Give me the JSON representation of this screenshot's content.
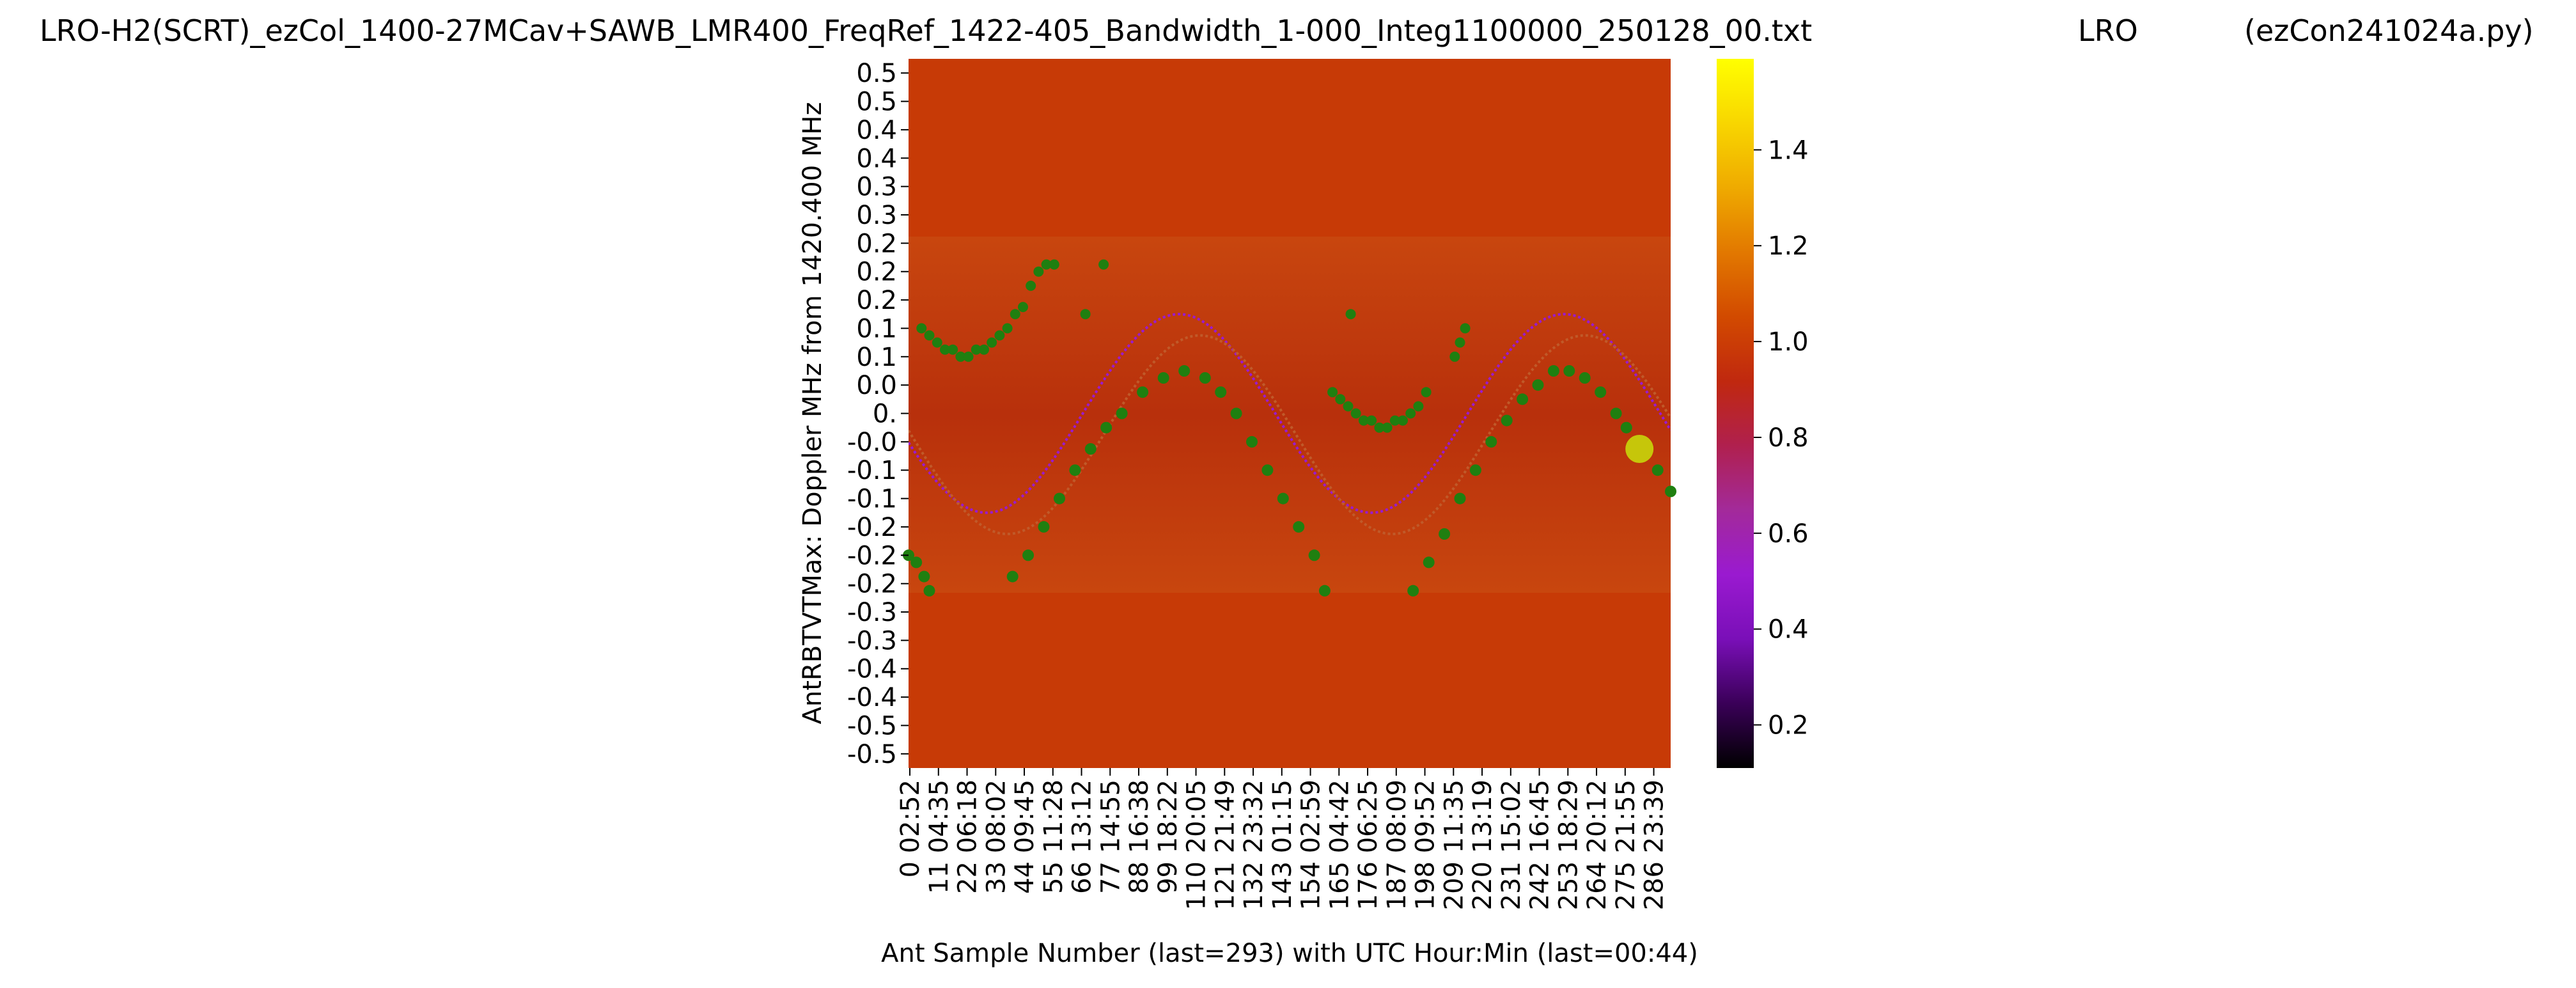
{
  "chart_data": {
    "type": "heatmap",
    "title_left": "LRO-H2(SCRT)_ezCol_1400-27MCav+SAWB_LMR400_FreqRef_1422-405_Bandwidth_1-000_Integ1100000_250128_00.txt",
    "title_mid": "LRO",
    "title_right": "(ezCon241024a.py)",
    "xlabel": "Ant Sample Number (last=293) with UTC Hour:Min (last=00:44)",
    "ylabel": "AntRBTVTMax:  Doppler MHz from 1420.400 MHz",
    "x_ticks": [
      {
        "sample": 0,
        "label": "0  02:52"
      },
      {
        "sample": 11,
        "label": "11  04:35"
      },
      {
        "sample": 22,
        "label": "22  06:18"
      },
      {
        "sample": 33,
        "label": "33  08:02"
      },
      {
        "sample": 44,
        "label": "44  09:45"
      },
      {
        "sample": 55,
        "label": "55  11:28"
      },
      {
        "sample": 66,
        "label": "66  13:12"
      },
      {
        "sample": 77,
        "label": "77  14:55"
      },
      {
        "sample": 88,
        "label": "88  16:38"
      },
      {
        "sample": 99,
        "label": "99  18:22"
      },
      {
        "sample": 110,
        "label": "110  20:05"
      },
      {
        "sample": 121,
        "label": "121  21:49"
      },
      {
        "sample": 132,
        "label": "132  23:32"
      },
      {
        "sample": 143,
        "label": "143  01:15"
      },
      {
        "sample": 154,
        "label": "154  02:59"
      },
      {
        "sample": 165,
        "label": "165  04:42"
      },
      {
        "sample": 176,
        "label": "176  06:25"
      },
      {
        "sample": 187,
        "label": "187  08:09"
      },
      {
        "sample": 198,
        "label": "198  09:52"
      },
      {
        "sample": 209,
        "label": "209  11:35"
      },
      {
        "sample": 220,
        "label": "220  13:19"
      },
      {
        "sample": 231,
        "label": "231  15:02"
      },
      {
        "sample": 242,
        "label": "242  16:45"
      },
      {
        "sample": 253,
        "label": "253  18:29"
      },
      {
        "sample": 264,
        "label": "264  20:12"
      },
      {
        "sample": 275,
        "label": "275  21:55"
      },
      {
        "sample": 286,
        "label": "286  23:39"
      }
    ],
    "x_range": [
      0,
      293
    ],
    "y_tick_labels": [
      "0.5",
      "0.5",
      "0.4",
      "0.4",
      "0.3",
      "0.3",
      "0.2",
      "0.2",
      "0.2",
      "0.1",
      "0.1",
      "0.0",
      "0.",
      "-0.0",
      "-0.1",
      "-0.1",
      "-0.2",
      "-0.2",
      "-0.2",
      "-0.3",
      "-0.3",
      "-0.4",
      "-0.4",
      "-0.5",
      "-0.5"
    ],
    "y_range": [
      -0.5,
      0.5
    ],
    "data_band_y_range": [
      -0.25,
      0.25
    ],
    "colorbar": {
      "ticks": [
        0.2,
        0.4,
        0.6,
        0.8,
        1.0,
        1.2,
        1.4
      ],
      "range": [
        0.11,
        1.59
      ],
      "colormap": "gnuplot",
      "stops": [
        "#000000",
        "#3a0058",
        "#7a0fb8",
        "#9a1ad0",
        "#a32a9a",
        "#b0204e",
        "#c0280f",
        "#d24a00",
        "#e27800",
        "#efaa00",
        "#f8d600",
        "#ffff00"
      ]
    },
    "fill_color": "#c73a06",
    "band_base_color": "#c0360c",
    "series": [
      {
        "type": "ridge_curve_maxima",
        "color": "#1f7f10",
        "points": [
          [
            0,
            -0.2
          ],
          [
            3,
            -0.21
          ],
          [
            6,
            -0.23
          ],
          [
            8,
            -0.25
          ],
          [
            40,
            -0.23
          ],
          [
            46,
            -0.2
          ],
          [
            52,
            -0.16
          ],
          [
            58,
            -0.12
          ],
          [
            64,
            -0.08
          ],
          [
            70,
            -0.05
          ],
          [
            76,
            -0.02
          ],
          [
            82,
            0.0
          ],
          [
            90,
            0.03
          ],
          [
            98,
            0.05
          ],
          [
            106,
            0.06
          ],
          [
            114,
            0.05
          ],
          [
            120,
            0.03
          ],
          [
            126,
            0.0
          ],
          [
            132,
            -0.04
          ],
          [
            138,
            -0.08
          ],
          [
            144,
            -0.12
          ],
          [
            150,
            -0.16
          ],
          [
            156,
            -0.2
          ],
          [
            160,
            -0.25
          ],
          [
            194,
            -0.25
          ],
          [
            200,
            -0.21
          ],
          [
            206,
            -0.17
          ],
          [
            212,
            -0.12
          ],
          [
            218,
            -0.08
          ],
          [
            224,
            -0.04
          ],
          [
            230,
            -0.01
          ],
          [
            236,
            0.02
          ],
          [
            242,
            0.04
          ],
          [
            248,
            0.06
          ],
          [
            254,
            0.06
          ],
          [
            260,
            0.05
          ],
          [
            266,
            0.03
          ],
          [
            272,
            0.0
          ],
          [
            276,
            -0.02
          ],
          [
            282,
            -0.05
          ],
          [
            288,
            -0.08
          ],
          [
            293,
            -0.11
          ]
        ]
      },
      {
        "type": "upper_arc_points",
        "color": "#1f7f10",
        "points": [
          [
            5,
            0.12
          ],
          [
            8,
            0.11
          ],
          [
            11,
            0.1
          ],
          [
            14,
            0.09
          ],
          [
            17,
            0.09
          ],
          [
            20,
            0.08
          ],
          [
            23,
            0.08
          ],
          [
            26,
            0.09
          ],
          [
            29,
            0.09
          ],
          [
            32,
            0.1
          ],
          [
            35,
            0.11
          ],
          [
            38,
            0.12
          ],
          [
            41,
            0.14
          ],
          [
            44,
            0.15
          ],
          [
            47,
            0.18
          ],
          [
            50,
            0.2
          ],
          [
            53,
            0.21
          ],
          [
            56,
            0.21
          ],
          [
            68,
            0.14
          ],
          [
            75,
            0.21
          ],
          [
            163,
            0.03
          ],
          [
            166,
            0.02
          ],
          [
            169,
            0.01
          ],
          [
            172,
            0.0
          ],
          [
            175,
            -0.01
          ],
          [
            178,
            -0.01
          ],
          [
            181,
            -0.02
          ],
          [
            184,
            -0.02
          ],
          [
            187,
            -0.01
          ],
          [
            190,
            -0.01
          ],
          [
            193,
            0.0
          ],
          [
            196,
            0.01
          ],
          [
            199,
            0.03
          ],
          [
            170,
            0.14
          ],
          [
            210,
            0.08
          ],
          [
            212,
            0.1
          ],
          [
            214,
            0.12
          ]
        ]
      },
      {
        "type": "hvc_marker",
        "color": "#c6c60a",
        "points": [
          [
            281,
            -0.05
          ]
        ]
      }
    ],
    "overlay_curves": [
      {
        "color": "#9a1ad0",
        "kind": "sine",
        "center": 0.0,
        "amp": 0.14,
        "phase_sample": 104,
        "period_samples": 148
      },
      {
        "color": "#c05a2a",
        "kind": "sine",
        "center": -0.03,
        "amp": 0.14,
        "phase_sample": 112,
        "period_samples": 148
      }
    ]
  }
}
